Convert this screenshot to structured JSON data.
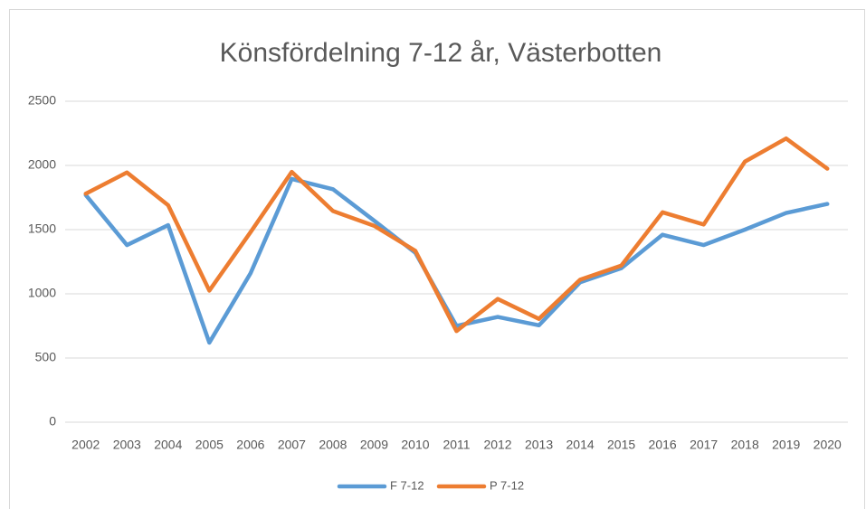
{
  "chart_data": {
    "type": "line",
    "title": "Könsfördelning 7-12 år, Västerbotten",
    "categories": [
      "2002",
      "2003",
      "2004",
      "2005",
      "2006",
      "2007",
      "2008",
      "2009",
      "2010",
      "2011",
      "2012",
      "2013",
      "2014",
      "2015",
      "2016",
      "2017",
      "2018",
      "2019",
      "2020"
    ],
    "series": [
      {
        "name": "F 7-12",
        "color": "#5b9bd5",
        "values": [
          1770,
          1380,
          1535,
          620,
          1160,
          1895,
          1815,
          1570,
          1320,
          750,
          820,
          755,
          1090,
          1200,
          1460,
          1380,
          1500,
          1630,
          1700
        ]
      },
      {
        "name": "P 7-12",
        "color": "#ed7d31",
        "values": [
          1780,
          1945,
          1690,
          1025,
          1480,
          1950,
          1645,
          1530,
          1335,
          710,
          960,
          805,
          1110,
          1220,
          1635,
          1540,
          2030,
          2210,
          1975
        ]
      }
    ],
    "ylim": [
      0,
      2500
    ],
    "yticks": [
      0,
      500,
      1000,
      1500,
      2000,
      2500
    ],
    "grid": true,
    "legend": "bottom"
  }
}
